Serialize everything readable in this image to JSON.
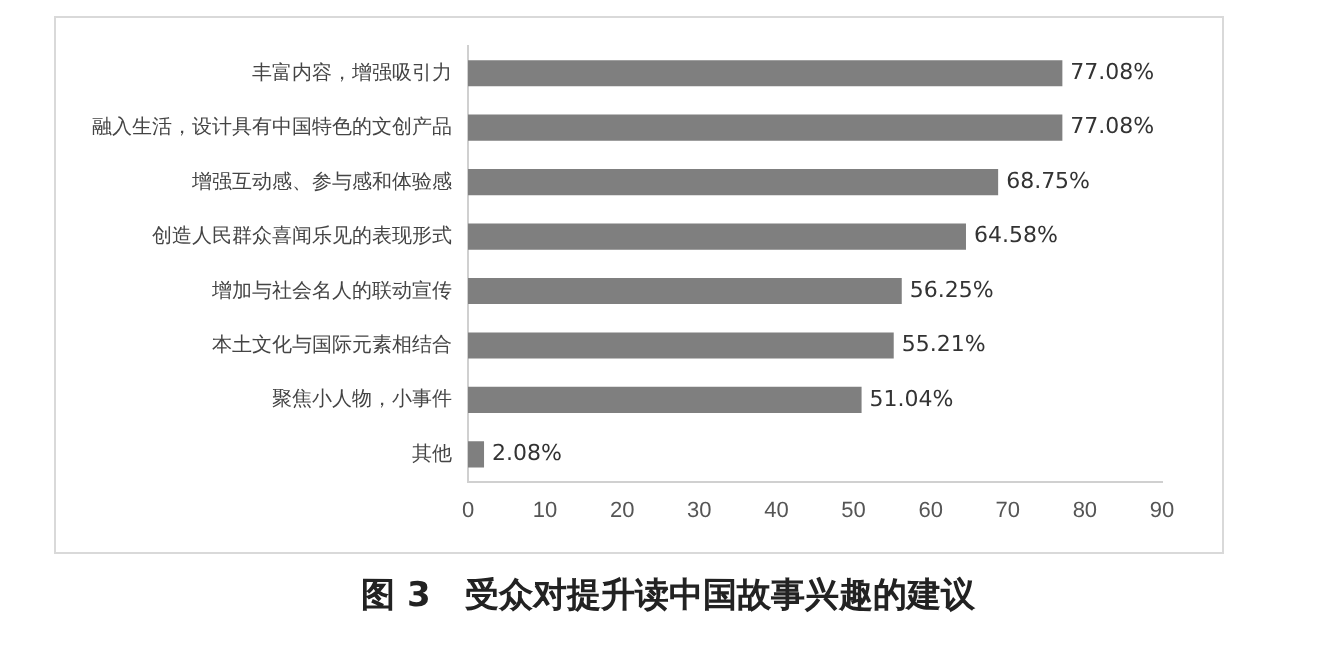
{
  "chart_data": {
    "type": "bar",
    "orientation": "horizontal",
    "title": "图 3　受众对提升读中国故事兴趣的建议",
    "categories": [
      "丰富内容，增强吸引力",
      "融入生活，设计具有中国特色的文创产品",
      "增强互动感、参与感和体验感",
      "创造人民群众喜闻乐见的表现形式",
      "增加与社会名人的联动宣传",
      "本土文化与国际元素相结合",
      "聚焦小人物，小事件",
      "其他"
    ],
    "values": [
      77.08,
      77.08,
      68.75,
      64.58,
      56.25,
      55.21,
      51.04,
      2.08
    ],
    "value_labels": [
      "77.08%",
      "77.08%",
      "68.75%",
      "64.58%",
      "56.25%",
      "55.21%",
      "51.04%",
      "2.08%"
    ],
    "color": "#7f7f7f",
    "xlim": [
      0,
      90
    ],
    "xticks": [
      0,
      10,
      20,
      30,
      40,
      50,
      60,
      70,
      80,
      90
    ],
    "grid": false,
    "legend": false
  }
}
